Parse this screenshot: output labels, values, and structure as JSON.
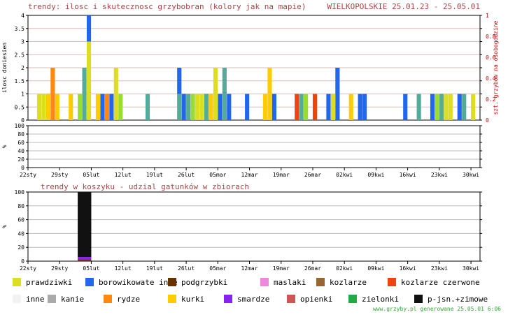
{
  "header": {
    "title": "trendy: ilosc i skutecznosc grzybobran (kolory jak na mapie)",
    "region_dates": "WIELKOPOLSKIE 25.01.23 - 25.05.01"
  },
  "footer": {
    "credit": "www.grzyby.pl generowane 25.05.01  6:06"
  },
  "chart_data": [
    {
      "id": "top",
      "type": "bar",
      "stacked": true,
      "title": "",
      "ylabel": "ilosc doniesien",
      "y2label": "szt. grzybow na osobogodzine",
      "ylim": [
        0,
        4
      ],
      "yticks": [
        0,
        0.5,
        1,
        1.5,
        2,
        2.5,
        3,
        3.5,
        4
      ],
      "y2lim": [
        0,
        1
      ],
      "y2ticks": [
        0,
        0.2,
        0.4,
        0.6,
        0.8,
        1
      ],
      "day_range": [
        0,
        100
      ],
      "bars": [
        {
          "day": 2,
          "segments": [
            [
              "prawdziwki",
              1
            ]
          ]
        },
        {
          "day": 3,
          "segments": [
            [
              "prawdziwki",
              1
            ]
          ]
        },
        {
          "day": 4,
          "segments": [
            [
              "kurki",
              1
            ]
          ]
        },
        {
          "day": 5,
          "segments": [
            [
              "rydze",
              1
            ],
            [
              "rydze",
              1
            ]
          ]
        },
        {
          "day": 6,
          "segments": [
            [
              "kurki",
              1
            ]
          ]
        },
        {
          "day": 9,
          "segments": [
            [
              "kurki",
              1
            ]
          ]
        },
        {
          "day": 11,
          "segments": [
            [
              "zielonki",
              1
            ]
          ]
        },
        {
          "day": 12,
          "segments": [
            [
              "teal",
              1
            ],
            [
              "teal",
              1
            ]
          ]
        },
        {
          "day": 13,
          "segments": [
            [
              "prawdziwki",
              1
            ],
            [
              "prawdziwki",
              1
            ],
            [
              "prawdziwki",
              1
            ],
            [
              "borowikowate_inne",
              1
            ]
          ]
        },
        {
          "day": 15,
          "segments": [
            [
              "kurki",
              1
            ]
          ]
        },
        {
          "day": 16,
          "segments": [
            [
              "borowikowate_inne",
              1
            ]
          ]
        },
        {
          "day": 17,
          "segments": [
            [
              "rydze",
              1
            ]
          ]
        },
        {
          "day": 18,
          "segments": [
            [
              "borowikowate_inne",
              1
            ]
          ]
        },
        {
          "day": 19,
          "segments": [
            [
              "prawdziwki",
              1
            ],
            [
              "prawdziwki",
              1
            ]
          ]
        },
        {
          "day": 20,
          "segments": [
            [
              "zielonki",
              1
            ]
          ]
        },
        {
          "day": 26,
          "segments": [
            [
              "teal",
              1
            ]
          ]
        },
        {
          "day": 33,
          "segments": [
            [
              "teal",
              1
            ],
            [
              "borowikowate_inne",
              1
            ]
          ]
        },
        {
          "day": 34,
          "segments": [
            [
              "borowikowate_inne",
              1
            ]
          ]
        },
        {
          "day": 35,
          "segments": [
            [
              "teal",
              1
            ]
          ]
        },
        {
          "day": 36,
          "segments": [
            [
              "zielonki",
              1
            ]
          ]
        },
        {
          "day": 37,
          "segments": [
            [
              "prawdziwki",
              1
            ]
          ]
        },
        {
          "day": 38,
          "segments": [
            [
              "prawdziwki",
              1
            ]
          ]
        },
        {
          "day": 39,
          "segments": [
            [
              "teal",
              1
            ]
          ]
        },
        {
          "day": 40,
          "segments": [
            [
              "kurki",
              1
            ]
          ]
        },
        {
          "day": 41,
          "segments": [
            [
              "prawdziwki",
              1
            ],
            [
              "prawdziwki",
              1
            ]
          ]
        },
        {
          "day": 42,
          "segments": [
            [
              "borowikowate_inne",
              1
            ]
          ]
        },
        {
          "day": 43,
          "segments": [
            [
              "teal",
              1
            ],
            [
              "teal",
              1
            ]
          ]
        },
        {
          "day": 44,
          "segments": [
            [
              "borowikowate_inne",
              1
            ]
          ]
        },
        {
          "day": 48,
          "segments": [
            [
              "borowikowate_inne",
              1
            ]
          ]
        },
        {
          "day": 52,
          "segments": [
            [
              "kurki",
              1
            ]
          ]
        },
        {
          "day": 53,
          "segments": [
            [
              "kurki",
              1
            ],
            [
              "kurki",
              1
            ]
          ]
        },
        {
          "day": 54,
          "segments": [
            [
              "borowikowate_inne",
              1
            ]
          ]
        },
        {
          "day": 59,
          "segments": [
            [
              "kozlarze_czerwone",
              1
            ]
          ]
        },
        {
          "day": 60,
          "segments": [
            [
              "teal",
              1
            ]
          ]
        },
        {
          "day": 61,
          "segments": [
            [
              "zielonki",
              1
            ]
          ]
        },
        {
          "day": 63,
          "segments": [
            [
              "kozlarze_czerwone",
              1
            ]
          ]
        },
        {
          "day": 66,
          "segments": [
            [
              "borowikowate_inne",
              1
            ]
          ]
        },
        {
          "day": 67,
          "segments": [
            [
              "prawdziwki",
              1
            ]
          ]
        },
        {
          "day": 68,
          "segments": [
            [
              "borowikowate_inne",
              1
            ],
            [
              "borowikowate_inne",
              1
            ]
          ]
        },
        {
          "day": 71,
          "segments": [
            [
              "kurki",
              1
            ]
          ]
        },
        {
          "day": 73,
          "segments": [
            [
              "borowikowate_inne",
              1
            ]
          ]
        },
        {
          "day": 74,
          "segments": [
            [
              "borowikowate_inne",
              1
            ]
          ]
        },
        {
          "day": 83,
          "segments": [
            [
              "borowikowate_inne",
              1
            ]
          ]
        },
        {
          "day": 86,
          "segments": [
            [
              "teal",
              1
            ]
          ]
        },
        {
          "day": 89,
          "segments": [
            [
              "borowikowate_inne",
              1
            ]
          ]
        },
        {
          "day": 90,
          "segments": [
            [
              "zielonki",
              1
            ]
          ]
        },
        {
          "day": 91,
          "segments": [
            [
              "teal",
              1
            ]
          ]
        },
        {
          "day": 92,
          "segments": [
            [
              "prawdziwki",
              1
            ]
          ]
        },
        {
          "day": 93,
          "segments": [
            [
              "prawdziwki",
              1
            ]
          ]
        },
        {
          "day": 95,
          "segments": [
            [
              "borowikowate_inne",
              1
            ]
          ]
        },
        {
          "day": 96,
          "segments": [
            [
              "teal",
              1
            ]
          ]
        },
        {
          "day": 98,
          "segments": [
            [
              "prawdziwki",
              1
            ]
          ]
        }
      ]
    },
    {
      "id": "middle",
      "type": "bar",
      "title": "",
      "ylabel": "%",
      "ylim": [
        0,
        100
      ],
      "yticks": [
        0,
        20,
        40,
        60,
        80,
        100
      ],
      "xlabels": [
        "22sty",
        "29sty",
        "05lut",
        "12lut",
        "19lut",
        "26lut",
        "05mar",
        "12mar",
        "19mar",
        "26mar",
        "02kwi",
        "09kwi",
        "16kwi",
        "23kwi",
        "30kwi"
      ],
      "values": []
    },
    {
      "id": "bottom",
      "type": "bar",
      "stacked": true,
      "title": "trendy w koszyku - udzial gatunków w zbiorach",
      "ylabel": "%",
      "ylim": [
        0,
        100
      ],
      "yticks": [
        0,
        20,
        40,
        60,
        80,
        100
      ],
      "xlabels": [
        "22sty",
        "29sty",
        "05lut",
        "12lut",
        "19lut",
        "26lut",
        "05mar",
        "12mar",
        "19mar",
        "26mar",
        "02kwi",
        "09kwi",
        "16kwi",
        "23kwi",
        "30kwi"
      ],
      "bars": [
        {
          "day_start": 11,
          "day_end": 14,
          "segments": [
            [
              "podgrzybki",
              2
            ],
            [
              "smardze",
              4
            ],
            [
              "p-jsn.+zimowe",
              94
            ]
          ]
        }
      ]
    }
  ],
  "legend": {
    "items": [
      {
        "key": "prawdziwki",
        "label": "prawdziwki",
        "color": "#dddd22"
      },
      {
        "key": "borowikowate_inne",
        "label": "borowikowate inne",
        "color": "#2266ee"
      },
      {
        "key": "podgrzybki",
        "label": "podgrzybki",
        "color": "#663300"
      },
      {
        "key": "maslaki",
        "label": "maslaki",
        "color": "#ee88dd"
      },
      {
        "key": "kozlarze",
        "label": "kozlarze",
        "color": "#996633"
      },
      {
        "key": "kozlarze_czerwone",
        "label": "kozlarze czerwone",
        "color": "#ee4411"
      },
      {
        "key": "inne",
        "label": "inne",
        "color": "#f2f2f2"
      },
      {
        "key": "kanie",
        "label": "kanie",
        "color": "#aaaaaa"
      },
      {
        "key": "rydze",
        "label": "rydze",
        "color": "#ff8811"
      },
      {
        "key": "kurki",
        "label": "kurki",
        "color": "#ffcc00"
      },
      {
        "key": "smardze",
        "label": "smardze",
        "color": "#8822ee"
      },
      {
        "key": "opienki",
        "label": "opienki",
        "color": "#cc5555"
      },
      {
        "key": "zielonki",
        "label": "zielonki",
        "color": "#22aa44"
      },
      {
        "key": "p-jsn.+zimowe",
        "label": "p-jsn.+zimowe",
        "color": "#111111"
      }
    ]
  },
  "extra_colors": {
    "teal": "#55aa99",
    "zielonki_bar": "#99dd33",
    "axis": "#000000",
    "title": "#aa4444",
    "grid_top": "#ddbbbb",
    "grid": "#bbbbbb",
    "right_axis": "#cc0000",
    "footer": "#33aa33"
  }
}
